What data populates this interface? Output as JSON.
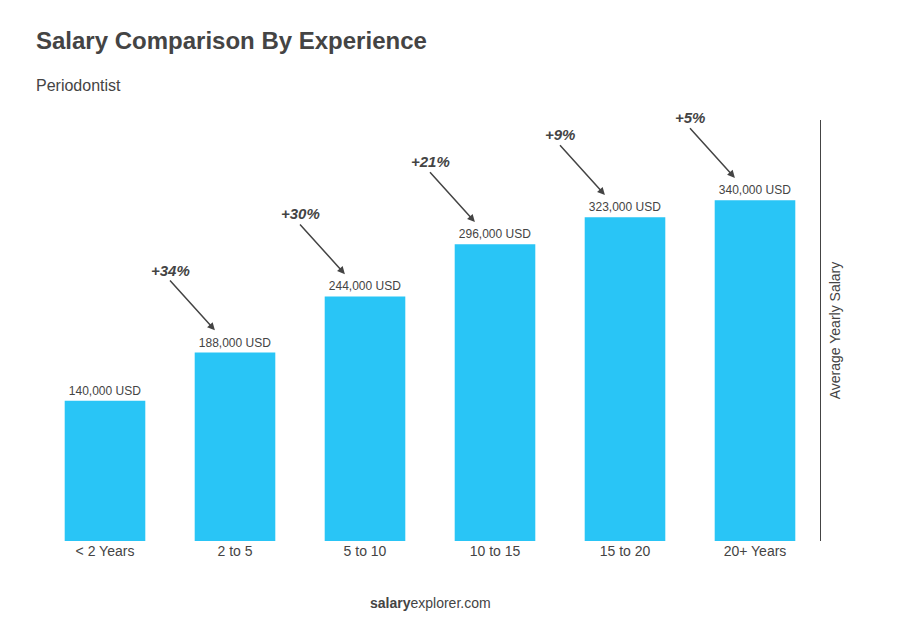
{
  "chart_data": {
    "type": "bar",
    "title": "Salary Comparison By Experience",
    "subtitle": "Periodontist",
    "categories": [
      "< 2 Years",
      "2 to 5",
      "5 to 10",
      "10 to 15",
      "15 to 20",
      "20+ Years"
    ],
    "values": [
      140000,
      188000,
      244000,
      296000,
      323000,
      340000
    ],
    "value_labels": [
      "140,000 USD",
      "188,000 USD",
      "244,000 USD",
      "296,000 USD",
      "323,000 USD",
      "340,000 USD"
    ],
    "data_labels": true,
    "annotations": [
      "+34%",
      "+30%",
      "+21%",
      "+9%",
      "+5%"
    ],
    "ylabel": "Average Yearly Salary",
    "footer": [
      "salary",
      "explorer.com"
    ],
    "color": "#29c5f6",
    "ylim": [
      0,
      420000
    ],
    "tick_labels": "x",
    "grid": false
  }
}
